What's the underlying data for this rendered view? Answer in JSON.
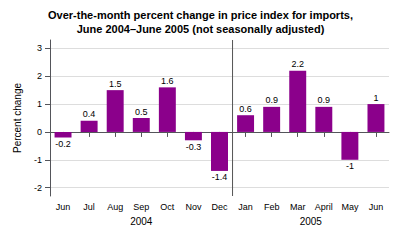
{
  "chart_data": {
    "type": "bar",
    "title": "Over-the-month percent change in price index for imports,\nJune 2004–June 2005 (not seasonally adjusted)",
    "y_label": "Percent change",
    "categories": [
      "Jun",
      "Jul",
      "Aug",
      "Sep",
      "Oct",
      "Nov",
      "Dec",
      "Jan",
      "Feb",
      "Mar",
      "April",
      "May",
      "Jun"
    ],
    "values": [
      -0.2,
      0.4,
      1.5,
      0.5,
      1.6,
      -0.3,
      -1.4,
      0.6,
      0.9,
      2.2,
      0.9,
      -1.0,
      1.0
    ],
    "color": "#8B008B",
    "ylim": [
      -2.3,
      3.3
    ],
    "yticks": [
      -2,
      -1,
      0,
      1,
      2,
      3
    ],
    "grid": true,
    "data_labels": true,
    "annotations": [
      "2004",
      "2005"
    ]
  }
}
